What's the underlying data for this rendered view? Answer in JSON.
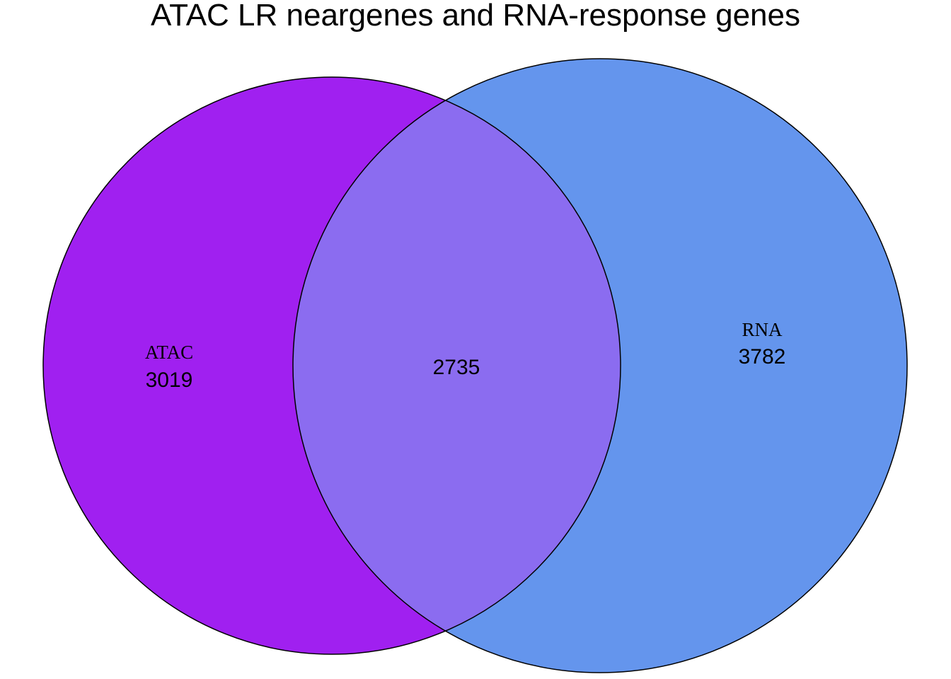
{
  "title": "ATAC LR neargenes and RNA-response genes",
  "sets": [
    {
      "name": "ATAC",
      "count": "3019",
      "color": "#A020F0"
    },
    {
      "name": "RNA",
      "count": "3782",
      "color": "#6495ED"
    }
  ],
  "intersection": {
    "count": "2735",
    "color": "#8B6CF0"
  },
  "outline_color": "#000000"
}
